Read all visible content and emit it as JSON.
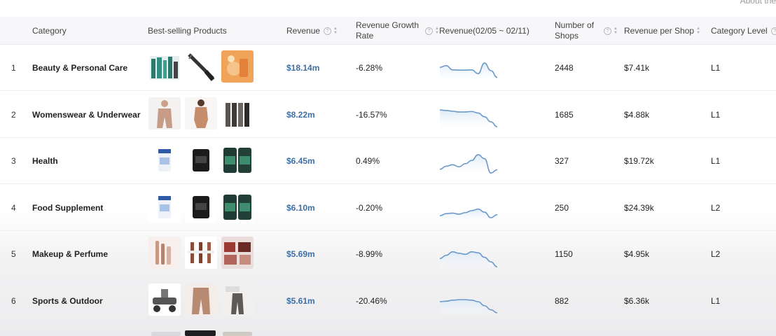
{
  "page": {
    "top_right_text": "About the"
  },
  "columns": {
    "category": "Category",
    "products": "Best-selling Products",
    "revenue": "Revenue",
    "growth_line1": "Revenue Growth",
    "growth_line2": "Rate",
    "trend": "Revenue(02/05 ~ 02/11)",
    "shops_line1": "Number of",
    "shops_line2": "Shops",
    "rev_per_shop": "Revenue per Shop",
    "level": "Category Level"
  },
  "icons": {
    "help": "help-circle-icon",
    "sort": "sort-icon"
  },
  "colors": {
    "revenue_text": "#3f6fa5",
    "sparkline": "#6b9ac9",
    "sparkline_fill": "#dce9f6"
  },
  "rows": [
    {
      "rank": "1",
      "category": "Beauty & Personal Care",
      "revenue": "$18.14m",
      "growth": "-6.28%",
      "shops": "2448",
      "rev_per_shop": "$7.41k",
      "level": "L1",
      "trend": [
        0.55,
        0.62,
        0.45,
        0.44,
        0.44,
        0.45,
        0.3,
        0.72,
        0.42,
        0.15
      ]
    },
    {
      "rank": "2",
      "category": "Womenswear & Underwear",
      "revenue": "$8.22m",
      "growth": "-16.57%",
      "shops": "1685",
      "rev_per_shop": "$4.88k",
      "level": "L1",
      "trend": [
        0.72,
        0.7,
        0.67,
        0.64,
        0.64,
        0.66,
        0.6,
        0.45,
        0.25,
        0.05
      ]
    },
    {
      "rank": "3",
      "category": "Health",
      "revenue": "$6.45m",
      "growth": "0.49%",
      "shops": "327",
      "rev_per_shop": "$19.72k",
      "level": "L1",
      "trend": [
        0.2,
        0.32,
        0.38,
        0.3,
        0.42,
        0.55,
        0.78,
        0.62,
        0.05,
        0.18
      ]
    },
    {
      "rank": "4",
      "category": "Food Supplement",
      "revenue": "$6.10m",
      "growth": "-0.20%",
      "shops": "250",
      "rev_per_shop": "$24.39k",
      "level": "L2",
      "trend": [
        0.22,
        0.3,
        0.32,
        0.28,
        0.34,
        0.42,
        0.48,
        0.36,
        0.14,
        0.26
      ]
    },
    {
      "rank": "5",
      "category": "Makeup & Perfume",
      "revenue": "$5.69m",
      "growth": "-8.99%",
      "shops": "1150",
      "rev_per_shop": "$4.95k",
      "level": "L2",
      "trend": [
        0.35,
        0.48,
        0.62,
        0.56,
        0.52,
        0.62,
        0.58,
        0.4,
        0.22,
        0.02
      ]
    },
    {
      "rank": "6",
      "category": "Sports & Outdoor",
      "revenue": "$5.61m",
      "growth": "-20.46%",
      "shops": "882",
      "rev_per_shop": "$6.36k",
      "level": "L1",
      "trend": [
        0.5,
        0.52,
        0.56,
        0.58,
        0.58,
        0.56,
        0.5,
        0.34,
        0.18,
        0.06
      ]
    }
  ]
}
